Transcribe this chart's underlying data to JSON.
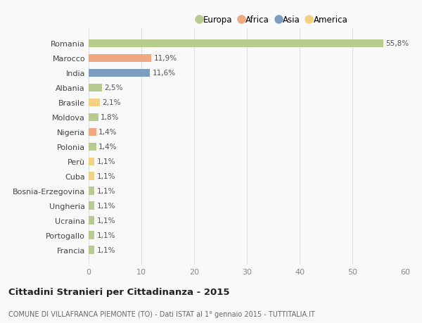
{
  "countries": [
    "Romania",
    "Marocco",
    "India",
    "Albania",
    "Brasile",
    "Moldova",
    "Nigeria",
    "Polonia",
    "Perù",
    "Cuba",
    "Bosnia-Erzegovina",
    "Ungheria",
    "Ucraina",
    "Portogallo",
    "Francia"
  ],
  "values": [
    55.8,
    11.9,
    11.6,
    2.5,
    2.1,
    1.8,
    1.4,
    1.4,
    1.1,
    1.1,
    1.1,
    1.1,
    1.1,
    1.1,
    1.1
  ],
  "labels": [
    "55,8%",
    "11,9%",
    "11,6%",
    "2,5%",
    "2,1%",
    "1,8%",
    "1,4%",
    "1,4%",
    "1,1%",
    "1,1%",
    "1,1%",
    "1,1%",
    "1,1%",
    "1,1%",
    "1,1%"
  ],
  "continents": [
    "Europa",
    "Africa",
    "Asia",
    "Europa",
    "America",
    "Europa",
    "Africa",
    "Europa",
    "America",
    "America",
    "Europa",
    "Europa",
    "Europa",
    "Europa",
    "Europa"
  ],
  "colors": {
    "Europa": "#b5cc8e",
    "Africa": "#f0a882",
    "Asia": "#7b9dbf",
    "America": "#f5d080"
  },
  "legend_order": [
    "Europa",
    "Africa",
    "Asia",
    "America"
  ],
  "title": "Cittadini Stranieri per Cittadinanza - 2015",
  "subtitle": "COMUNE DI VILLAFRANCA PIEMONTE (TO) - Dati ISTAT al 1° gennaio 2015 - TUTTITALIA.IT",
  "xlim": [
    0,
    60
  ],
  "xticks": [
    0,
    10,
    20,
    30,
    40,
    50,
    60
  ],
  "background_color": "#f9f9f9",
  "grid_color": "#e0e0e0",
  "bar_height": 0.55
}
